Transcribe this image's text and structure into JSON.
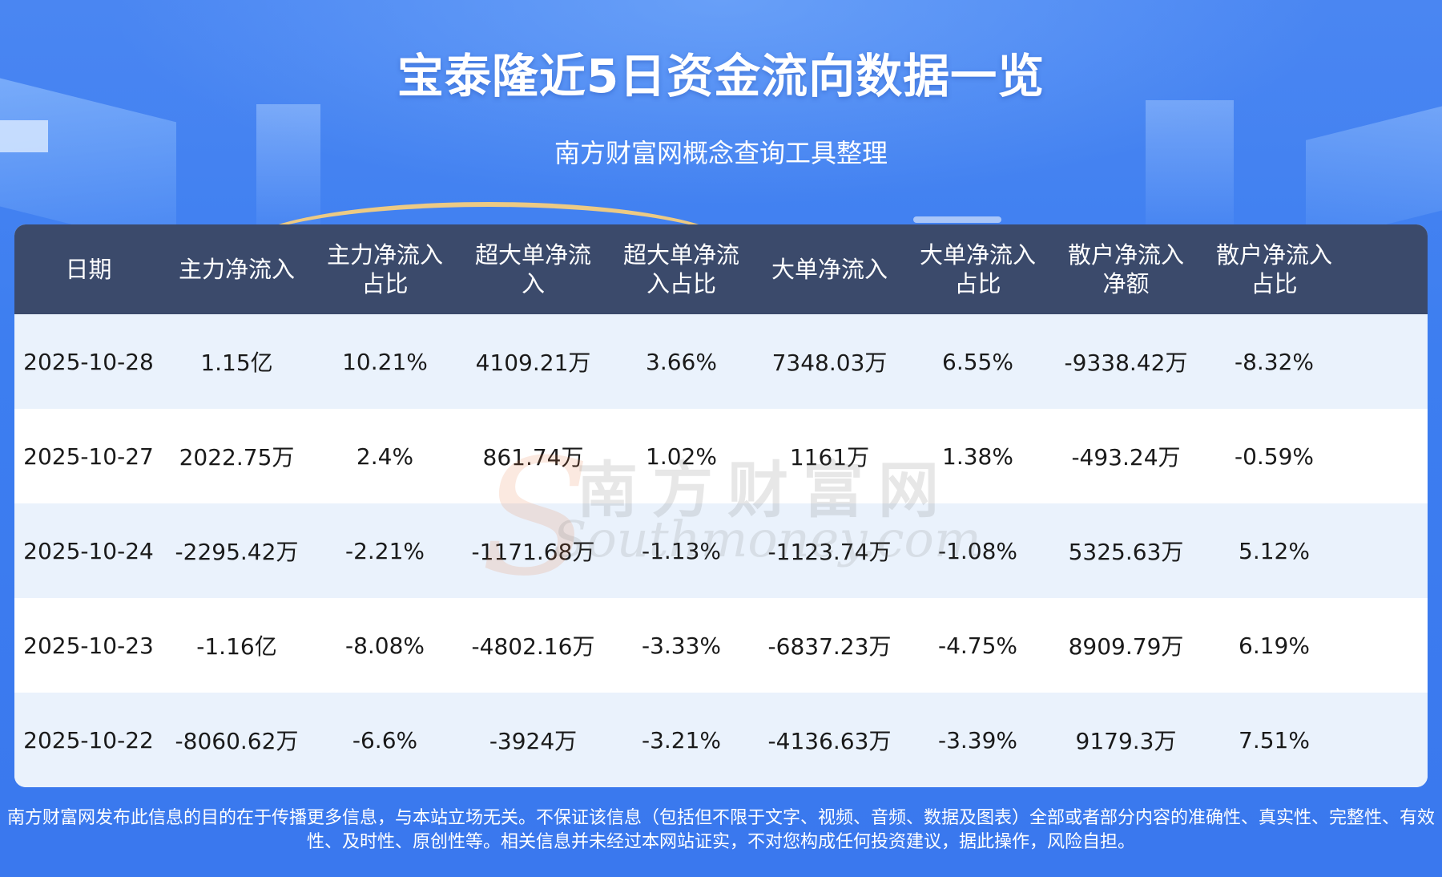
{
  "header": {
    "title": "宝泰隆近5日资金流向数据一览",
    "subtitle": "南方财富网概念查询工具整理"
  },
  "table": {
    "columns": [
      [
        "日期"
      ],
      [
        "主力净流入"
      ],
      [
        "主力净流入",
        "占比"
      ],
      [
        "超大单净流",
        "入"
      ],
      [
        "超大单净流",
        "入占比"
      ],
      [
        "大单净流入"
      ],
      [
        "大单净流入",
        "占比"
      ],
      [
        "散户净流入",
        "净额"
      ],
      [
        "散户净流入",
        "占比"
      ]
    ],
    "rows": [
      [
        "2025-10-28",
        "1.15亿",
        "10.21%",
        "4109.21万",
        "3.66%",
        "7348.03万",
        "6.55%",
        "-9338.42万",
        "-8.32%"
      ],
      [
        "2025-10-27",
        "2022.75万",
        "2.4%",
        "861.74万",
        "1.02%",
        "1161万",
        "1.38%",
        "-493.24万",
        "-0.59%"
      ],
      [
        "2025-10-24",
        "-2295.42万",
        "-2.21%",
        "-1171.68万",
        "-1.13%",
        "-1123.74万",
        "-1.08%",
        "5325.63万",
        "5.12%"
      ],
      [
        "2025-10-23",
        "-1.16亿",
        "-8.08%",
        "-4802.16万",
        "-3.33%",
        "-6837.23万",
        "-4.75%",
        "8909.79万",
        "6.19%"
      ],
      [
        "2025-10-22",
        "-8060.62万",
        "-6.6%",
        "-3924万",
        "-3.21%",
        "-4136.63万",
        "-3.39%",
        "9179.3万",
        "7.51%"
      ]
    ]
  },
  "watermark": {
    "cn": "南方财富网",
    "en": "Southmoney.com"
  },
  "footer": {
    "disclaimer": "南方财富网发布此信息的目的在于传播更多信息，与本站立场无关。不保证该信息（包括但不限于文字、视频、音频、数据及图表）全部或者部分内容的准确性、真实性、完整性、有效性、及时性、原创性等。相关信息并未经过本网站证实，不对您构成任何投资建议，据此操作，风险自担。"
  }
}
